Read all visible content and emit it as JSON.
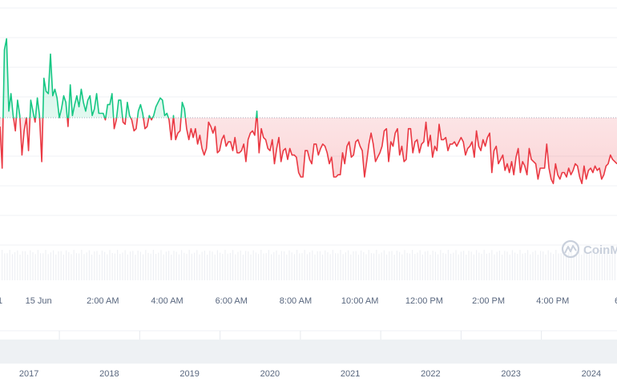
{
  "chart_data": {
    "type": "line",
    "baseline": 50,
    "ylim": [
      0,
      100
    ],
    "colors": {
      "above": "#16c784",
      "below": "#ea3943",
      "grid": "#eff2f5",
      "axis_text": "#58667e",
      "baseline": "#a6b0c3"
    },
    "x_labels": [
      "1",
      "15 Jun",
      "2:00 AM",
      "4:00 AM",
      "6:00 AM",
      "8:00 AM",
      "10:00 AM",
      "12:00 PM",
      "2:00 PM",
      "4:00 PM",
      "6"
    ],
    "x_label_positions": [
      0,
      6,
      16,
      26,
      36,
      46,
      56,
      66,
      76,
      86,
      96
    ],
    "navigator_labels": [
      "2017",
      "2018",
      "2019",
      "2020",
      "2021",
      "2022",
      "2023",
      "2024"
    ],
    "navigator_label_positions": [
      4.5,
      17,
      29.5,
      42,
      54.5,
      67,
      79.5,
      92
    ],
    "watermark": "CoinM",
    "x_range": [
      0,
      96
    ],
    "values": [
      46,
      27,
      81,
      86,
      53,
      61,
      51,
      44,
      58,
      51,
      33,
      44,
      50,
      35,
      58,
      53,
      48,
      59,
      51,
      30,
      68,
      62,
      61,
      79,
      60,
      63,
      59,
      50,
      54,
      60,
      57,
      46,
      65,
      51,
      56,
      60,
      55,
      63,
      57,
      53,
      58,
      60,
      51,
      54,
      61,
      52,
      52,
      52,
      49,
      56,
      56,
      61,
      45,
      49,
      58,
      58,
      48,
      47,
      57,
      51,
      49,
      44,
      45,
      53,
      56,
      52,
      45,
      46,
      51,
      49,
      51,
      55,
      57,
      59,
      58,
      51,
      52,
      49,
      40,
      51,
      40,
      43,
      44,
      57,
      54,
      45,
      40,
      45,
      41,
      45,
      38,
      42,
      36,
      33,
      36,
      48,
      46,
      43,
      46,
      34,
      35,
      40,
      42,
      37,
      39,
      39,
      35,
      41,
      34,
      34,
      35,
      38,
      30,
      40,
      43,
      44,
      42,
      53,
      34,
      45,
      41,
      40,
      36,
      35,
      40,
      29,
      36,
      41,
      30,
      35,
      36,
      31,
      36,
      33,
      33,
      32,
      25,
      23,
      23,
      35,
      35,
      31,
      29,
      38,
      38,
      33,
      36,
      38,
      37,
      34,
      29,
      32,
      23,
      23,
      24,
      24,
      34,
      29,
      37,
      39,
      32,
      33,
      39,
      40,
      37,
      35,
      23,
      30,
      38,
      43,
      38,
      30,
      32,
      34,
      37,
      44,
      45,
      30,
      39,
      37,
      43,
      45,
      33,
      37,
      30,
      31,
      45,
      45,
      34,
      39,
      40,
      34,
      38,
      39,
      48,
      37,
      42,
      32,
      37,
      35,
      47,
      40,
      40,
      41,
      35,
      38,
      38,
      39,
      37,
      39,
      41,
      39,
      33,
      36,
      37,
      39,
      32,
      44,
      37,
      35,
      40,
      37,
      41,
      43,
      25,
      35,
      37,
      29,
      31,
      33,
      26,
      29,
      25,
      30,
      24,
      32,
      36,
      25,
      30,
      28,
      24,
      36,
      31,
      30,
      29,
      22,
      27,
      27,
      27,
      38,
      27,
      22,
      20,
      29,
      24,
      22,
      25,
      25,
      23,
      27,
      24,
      26,
      29,
      28,
      23,
      20,
      28,
      22,
      26,
      27,
      25,
      28,
      26,
      27,
      22,
      24,
      28,
      29,
      33,
      31,
      30,
      29
    ]
  }
}
